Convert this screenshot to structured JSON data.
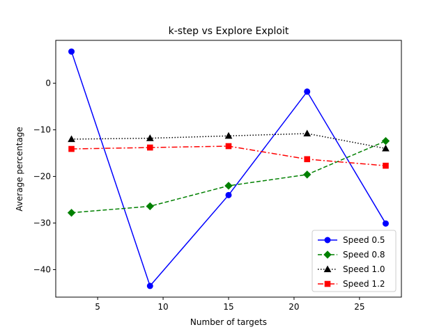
{
  "chart_data": {
    "type": "line",
    "title": "k-step vs Explore Exploit",
    "xlabel": "Number of targets",
    "ylabel": "Average percentage",
    "x": [
      3,
      9,
      15,
      21,
      27
    ],
    "xlim": [
      1.8,
      28.2
    ],
    "ylim": [
      -45.9,
      9.2
    ],
    "xticks": [
      5,
      10,
      15,
      20,
      25
    ],
    "yticks": [
      0,
      -10,
      -20,
      -30,
      -40
    ],
    "legend_position": "lower-right",
    "grid": false,
    "series": [
      {
        "name": "Speed 0.5",
        "values": [
          6.8,
          -43.5,
          -24.0,
          -1.8,
          -30.1
        ],
        "color": "#0000ff",
        "marker": "circle",
        "linestyle": "solid"
      },
      {
        "name": "Speed 0.8",
        "values": [
          -27.8,
          -26.4,
          -22.0,
          -19.6,
          -12.4
        ],
        "color": "#008000",
        "marker": "diamond",
        "linestyle": "dashed"
      },
      {
        "name": "Speed 1.0",
        "values": [
          -12.0,
          -11.8,
          -11.3,
          -10.8,
          -14.0
        ],
        "color": "#000000",
        "marker": "triangle",
        "linestyle": "dotted"
      },
      {
        "name": "Speed 1.2",
        "values": [
          -14.1,
          -13.8,
          -13.5,
          -16.3,
          -17.7
        ],
        "color": "#ff0000",
        "marker": "square",
        "linestyle": "dashdot"
      }
    ]
  }
}
